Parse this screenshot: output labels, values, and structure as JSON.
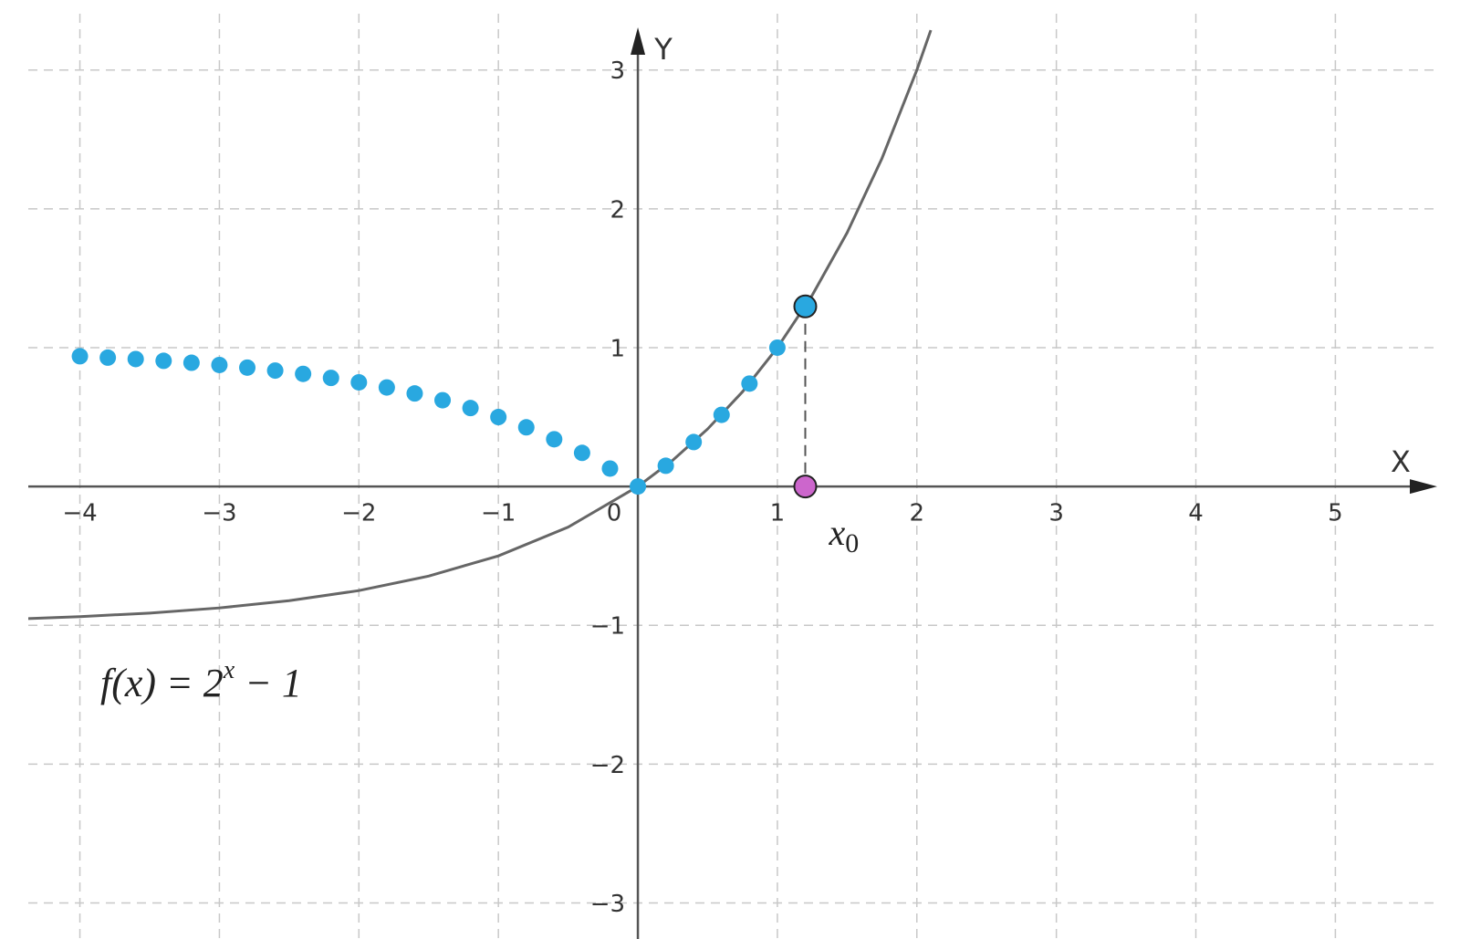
{
  "chart_data": {
    "type": "function-plot",
    "x_axis_label": "X",
    "y_axis_label": "Y",
    "xlim": [
      -4.37,
      5.73
    ],
    "ylim": [
      -3.26,
      3.34
    ],
    "xticks": [
      {
        "value": -4,
        "label": "−4"
      },
      {
        "value": -3,
        "label": "−3"
      },
      {
        "value": -2,
        "label": "−2"
      },
      {
        "value": -1,
        "label": "−1"
      },
      0,
      1,
      2,
      3,
      4,
      5
    ],
    "yticks": [
      {
        "value": -3,
        "label": "−3"
      },
      {
        "value": -2,
        "label": "−2"
      },
      {
        "value": -1,
        "label": "−1"
      },
      1,
      2,
      3
    ],
    "grid": true,
    "curve": {
      "color": "#666666",
      "x": [
        -4.4,
        -4,
        -3.5,
        -3,
        -2.5,
        -2,
        -1.5,
        -1,
        -0.5,
        0,
        0.25,
        0.5,
        0.75,
        1,
        1.25,
        1.5,
        1.75,
        2,
        2.1
      ],
      "values": [
        -0.953,
        -0.938,
        -0.912,
        -0.875,
        -0.823,
        -0.75,
        -0.646,
        -0.5,
        -0.293,
        0,
        0.189,
        0.414,
        0.682,
        1,
        1.378,
        1.828,
        2.364,
        3,
        3.287
      ]
    },
    "dots": {
      "color": "#29a8e0",
      "x": [
        -4,
        -3.8,
        -3.6,
        -3.4,
        -3.2,
        -3,
        -2.8,
        -2.6,
        -2.4,
        -2.2,
        -2,
        -1.8,
        -1.6,
        -1.4,
        -1.2,
        -1,
        -0.8,
        -0.6,
        -0.4,
        -0.2,
        0,
        0.2,
        0.4,
        0.6,
        0.8,
        1
      ],
      "values": [
        0.938,
        0.928,
        0.918,
        0.905,
        0.891,
        0.875,
        0.856,
        0.835,
        0.811,
        0.782,
        0.75,
        0.713,
        0.67,
        0.621,
        0.565,
        0.5,
        0.426,
        0.34,
        0.242,
        0.129,
        0,
        0.149,
        0.32,
        0.516,
        0.741,
        1
      ]
    },
    "highlight_point": {
      "x": 1.2,
      "y": 1.297,
      "color": "#29a8e0"
    },
    "foot_point": {
      "x": 1.2,
      "y": 0,
      "color": "#cc66cc"
    },
    "point_label": {
      "text": "x",
      "subscript": "0"
    },
    "formula": {
      "base": "f(x) = 2",
      "superscript": "x",
      "rest": " − 1"
    }
  }
}
